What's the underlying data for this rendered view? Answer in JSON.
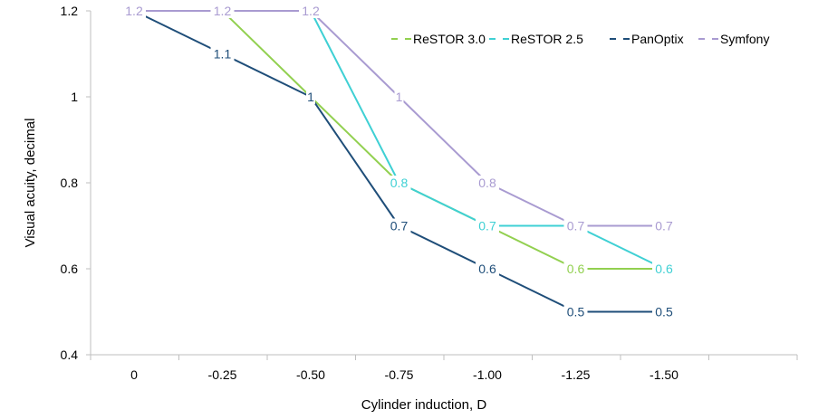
{
  "chart_data": {
    "type": "line",
    "title": "",
    "xlabel": "Cylinder induction, D",
    "ylabel": "Visual acuity, decimal",
    "categories": [
      "0",
      "-0.25",
      "-0.50",
      "-0.75",
      "-1.00",
      "-1.25",
      "-1.50"
    ],
    "ylim": [
      0.4,
      1.2
    ],
    "yticks": [
      "0.4",
      "0.6",
      "0.8",
      "1",
      "1.2"
    ],
    "grid": false,
    "legend_position": "top-right",
    "series": [
      {
        "name": "ReSTOR 3.0",
        "color": "#92d050",
        "values": [
          null,
          1.2,
          1.0,
          0.8,
          0.7,
          0.6,
          0.6
        ],
        "labels": [
          null,
          null,
          null,
          null,
          null,
          "0.6",
          null
        ]
      },
      {
        "name": "ReSTOR 2.5",
        "color": "#3fd0d4",
        "values": [
          null,
          null,
          1.2,
          0.8,
          0.7,
          0.7,
          0.6
        ],
        "labels": [
          null,
          null,
          null,
          "0.8",
          "0.7",
          null,
          "0.6"
        ]
      },
      {
        "name": "PanOptix",
        "color": "#1f4e79",
        "values": [
          1.2,
          1.1,
          1.0,
          0.7,
          0.6,
          0.5,
          0.5
        ],
        "labels": [
          null,
          "1.1",
          "1",
          "0.7",
          "0.6",
          "0.5",
          "0.5"
        ]
      },
      {
        "name": "Symfony",
        "color": "#a99bd1",
        "values": [
          1.2,
          1.2,
          1.2,
          1.0,
          0.8,
          0.7,
          0.7
        ],
        "labels": [
          "1.2",
          "1.2",
          "1.2",
          "1",
          "0.8",
          "0.7",
          "0.7"
        ]
      }
    ]
  }
}
